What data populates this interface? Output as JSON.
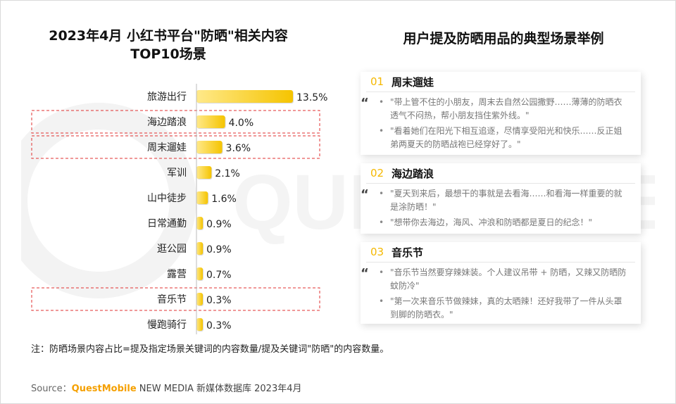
{
  "left_title_line1": "2023年4月 小红书平台\"防晒\"相关内容",
  "left_title_line2": "TOP10场景",
  "right_title": "用户提及防晒用品的典型场景举例",
  "colors": {
    "bar_gold": "#f5c400",
    "bar_light": "#ffe98a",
    "highlight_border": "#e03030",
    "accent": "#f5b800"
  },
  "chart_data": {
    "type": "bar",
    "orientation": "horizontal",
    "categories": [
      "旅游出行",
      "海边踏浪",
      "周末遛娃",
      "军训",
      "山中徒步",
      "日常通勤",
      "逛公园",
      "露营",
      "音乐节",
      "慢跑骑行"
    ],
    "values": [
      13.5,
      4.0,
      3.6,
      2.1,
      1.6,
      0.9,
      0.9,
      0.7,
      0.3,
      0.3
    ],
    "value_labels": [
      "13.5%",
      "4.0%",
      "3.6%",
      "2.1%",
      "1.6%",
      "0.9%",
      "0.9%",
      "0.7%",
      "0.3%",
      "0.3%"
    ],
    "highlighted": [
      "海边踏浪",
      "周末遛娃",
      "音乐节"
    ],
    "grid": false
  },
  "cards": [
    {
      "num": "01",
      "title": "周末遛娃",
      "quotes": [
        "\"带上管不住的小朋友，周末去自然公园撒野……薄薄的防晒衣透气不闷热，帮小朋友挡住紫外线。\"",
        "\"看着她们在阳光下相互追逐，尽情享受阳光和快乐……反正姐弟两夏天的防晒战袍已经穿好了。\""
      ]
    },
    {
      "num": "02",
      "title": "海边踏浪",
      "quotes": [
        "\"夏天到来后，最想干的事就是去看海……和看海一样重要的就是涂防晒！\"",
        "\"想带你去海边，海风、冲浪和防晒都是夏日的纪念！\""
      ]
    },
    {
      "num": "03",
      "title": "音乐节",
      "quotes": [
        "\"音乐节当然要穿辣妹装。个人建议吊带 + 防晒，又辣又防晒防蚊防冷\"",
        "\"第一次来音乐节做辣妹，真的太晒辣！还好我带了一件从头罩到脚的防晒衣。\""
      ]
    }
  ],
  "note": "注：防晒场景内容占比=提及指定场景关键词的内容数量/提及关键词\"防晒\"的内容数量。",
  "source_prefix": "Source：",
  "source_brand": "QuestMobile",
  "source_rest": " NEW MEDIA 新媒体数据库 2023年4月",
  "watermark_text": "QUESTMOBILE"
}
